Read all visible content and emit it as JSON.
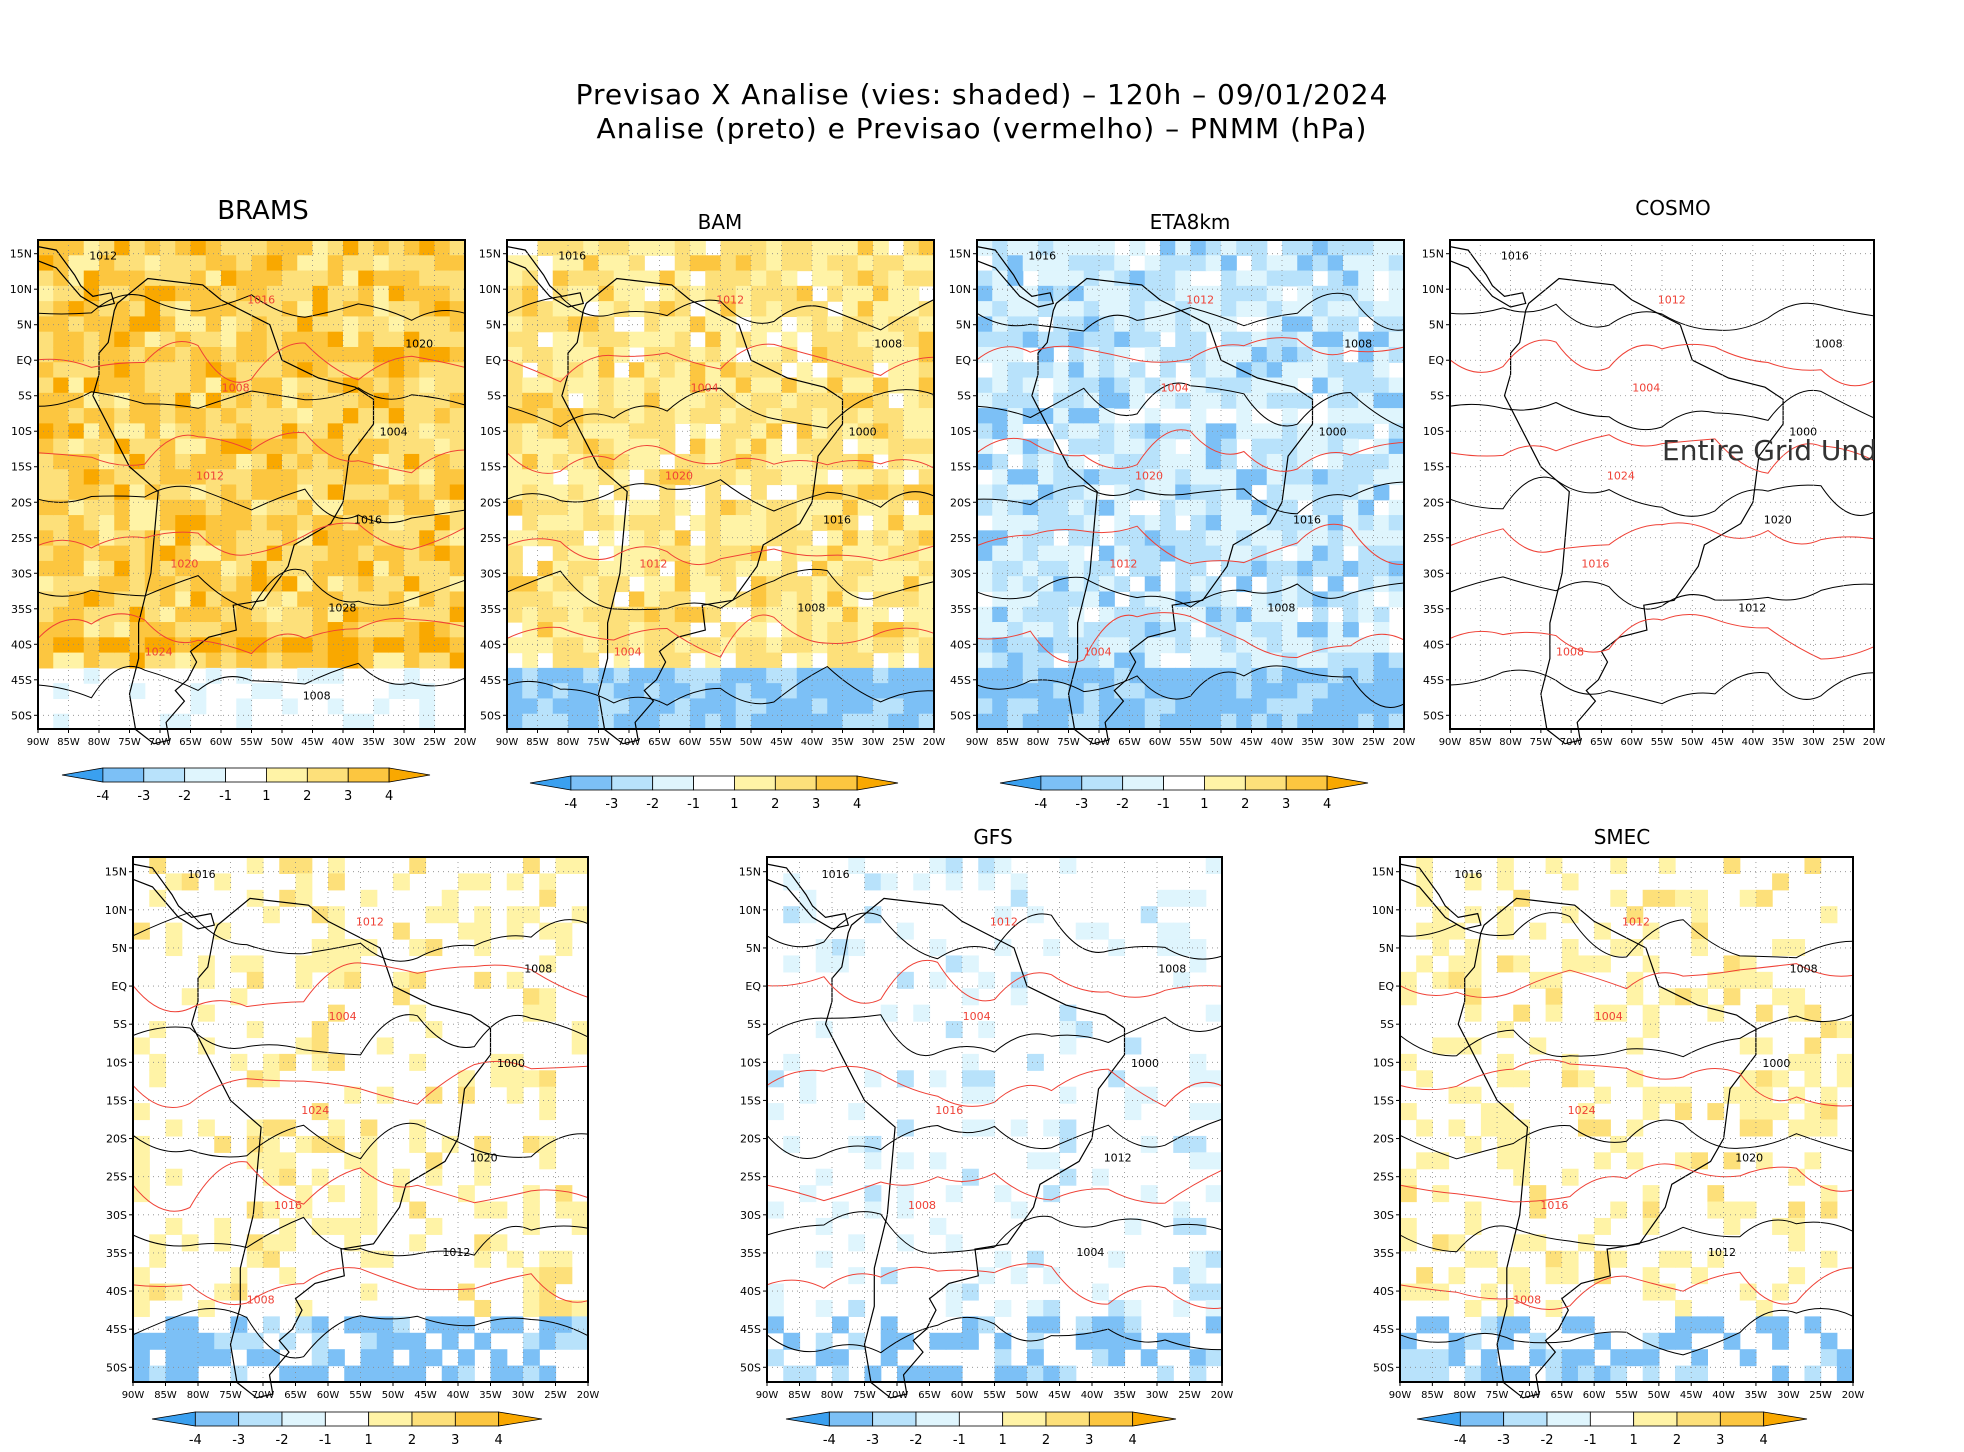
{
  "title": {
    "line1": "Previsao X Analise (vies: shaded) – 120h – 09/01/2024",
    "line2": "Analise (preto) e Previsao (vermelho) – PNMM (hPa)"
  },
  "axes": {
    "lat_labels": [
      "15N",
      "10N",
      "5N",
      "EQ",
      "5S",
      "10S",
      "15S",
      "20S",
      "25S",
      "30S",
      "35S",
      "40S",
      "45S",
      "50S"
    ],
    "lon_labels": [
      "90W",
      "85W",
      "80W",
      "75W",
      "70W",
      "65W",
      "60W",
      "55W",
      "50W",
      "45W",
      "40W",
      "35W",
      "30W",
      "25W",
      "20W"
    ]
  },
  "colorbar": {
    "labels": [
      "-4",
      "-3",
      "-2",
      "-1",
      "1",
      "2",
      "3",
      "4"
    ],
    "colors": [
      "#3aa0f0",
      "#7cc0f6",
      "#b8e2fb",
      "#dff5fd",
      "#ffffff",
      "#fff3a6",
      "#fde07a",
      "#fcc640",
      "#f9a800"
    ]
  },
  "legend": {
    "analysis_color": "#000000",
    "forecast_color": "#ef4136"
  },
  "chart_data": [
    {
      "type": "heatmap",
      "title": "BRAMS",
      "dominant_bias_hPa": 3,
      "lat_range": [
        "15N",
        "50S"
      ],
      "lon_range": [
        "90W",
        "20W"
      ],
      "isobar_labels": [
        "1012",
        "1016",
        "1020",
        "1008",
        "1004",
        "1012",
        "1016",
        "1020",
        "1028",
        "1024",
        "1008"
      ],
      "note_text": ""
    },
    {
      "type": "heatmap",
      "title": "BAM",
      "dominant_bias_hPa": 2,
      "lat_range": [
        "15N",
        "50S"
      ],
      "lon_range": [
        "90W",
        "20W"
      ],
      "isobar_labels": [
        "1016",
        "1012",
        "1008",
        "1004",
        "1000",
        "1020",
        "1016",
        "1012",
        "1008",
        "1004"
      ],
      "note_text": ""
    },
    {
      "type": "heatmap",
      "title": "ETA8km",
      "dominant_bias_hPa": -2,
      "lat_range": [
        "15N",
        "50S"
      ],
      "lon_range": [
        "90W",
        "20W"
      ],
      "isobar_labels": [
        "1016",
        "1012",
        "1008",
        "1004",
        "1000",
        "1020",
        "1016",
        "1012",
        "1008",
        "1004"
      ],
      "note_text": ""
    },
    {
      "type": "heatmap",
      "title": "COSMO",
      "dominant_bias_hPa": 0,
      "lat_range": [
        "15N",
        "50S"
      ],
      "lon_range": [
        "90W",
        "20W"
      ],
      "isobar_labels": [
        "1016",
        "1012",
        "1008",
        "1004",
        "1000",
        "1024",
        "1020",
        "1016",
        "1012",
        "1008"
      ],
      "note_text": "Entire Grid Und"
    },
    {
      "type": "heatmap",
      "title": "",
      "dominant_bias_hPa": 1,
      "lat_range": [
        "15N",
        "50S"
      ],
      "lon_range": [
        "90W",
        "20W"
      ],
      "isobar_labels": [
        "1016",
        "1012",
        "1008",
        "1004",
        "1000",
        "1024",
        "1020",
        "1016",
        "1012",
        "1008"
      ],
      "note_text": ""
    },
    {
      "type": "heatmap",
      "title": "GFS",
      "dominant_bias_hPa": -1,
      "lat_range": [
        "15N",
        "50S"
      ],
      "lon_range": [
        "90W",
        "20W"
      ],
      "isobar_labels": [
        "1016",
        "1012",
        "1008",
        "1004",
        "1000",
        "1016",
        "1012",
        "1008",
        "1004"
      ],
      "note_text": ""
    },
    {
      "type": "heatmap",
      "title": "SMEC",
      "dominant_bias_hPa": 1,
      "lat_range": [
        "15N",
        "50S"
      ],
      "lon_range": [
        "90W",
        "20W"
      ],
      "isobar_labels": [
        "1016",
        "1012",
        "1008",
        "1004",
        "1000",
        "1024",
        "1020",
        "1016",
        "1012",
        "1008"
      ],
      "note_text": ""
    }
  ]
}
